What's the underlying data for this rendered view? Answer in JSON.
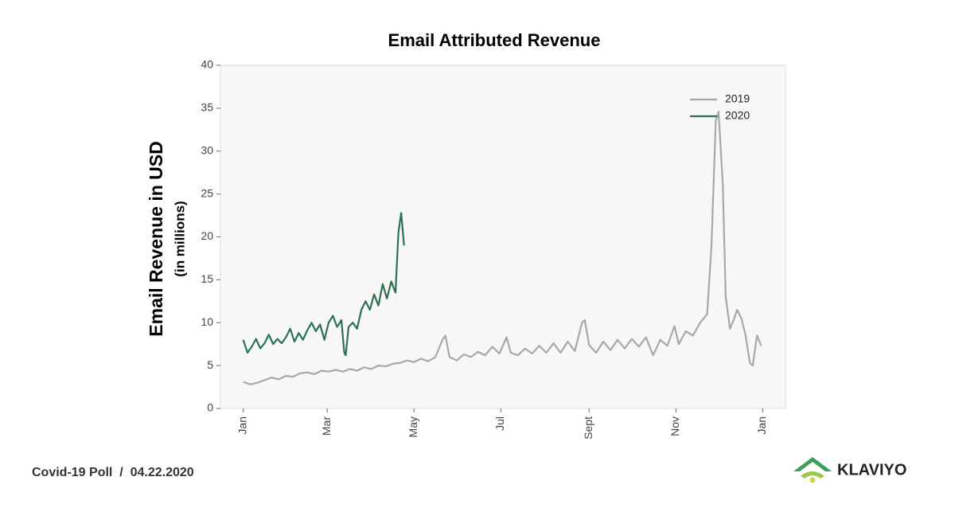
{
  "chart_data": {
    "type": "line",
    "title": "Email Attributed Revenue",
    "y_label": [
      "Email Revenue in USD",
      "(in millions)"
    ],
    "xlim": [
      -16,
      381
    ],
    "ylim": [
      0,
      40
    ],
    "xticks": [
      {
        "value": 0,
        "label": "Jan"
      },
      {
        "value": 59,
        "label": "Mar"
      },
      {
        "value": 120,
        "label": "May"
      },
      {
        "value": 181,
        "label": "Jul"
      },
      {
        "value": 243,
        "label": "Sept"
      },
      {
        "value": 304,
        "label": "Nov"
      },
      {
        "value": 365,
        "label": "Jan"
      }
    ],
    "yticks": [
      0,
      5,
      10,
      15,
      20,
      25,
      30,
      35,
      40
    ],
    "legend": "upper right",
    "grid": false,
    "series": [
      {
        "name": "2019",
        "color": "#a8a8a8",
        "x": [
          0,
          5,
          10,
          15,
          20,
          25,
          30,
          35,
          40,
          45,
          50,
          55,
          60,
          65,
          70,
          75,
          80,
          85,
          90,
          95,
          100,
          105,
          110,
          115,
          120,
          125,
          130,
          135,
          140,
          142,
          145,
          150,
          155,
          160,
          165,
          170,
          175,
          180,
          185,
          188,
          193,
          198,
          203,
          208,
          213,
          218,
          223,
          228,
          233,
          238,
          240,
          243,
          248,
          253,
          258,
          263,
          268,
          273,
          278,
          283,
          288,
          293,
          298,
          303,
          306,
          311,
          316,
          321,
          326,
          329,
          332,
          334,
          337,
          339,
          342,
          345,
          347,
          350,
          353,
          356,
          358,
          361,
          364
        ],
        "values": [
          3.1,
          2.8,
          3.0,
          3.3,
          3.6,
          3.4,
          3.8,
          3.7,
          4.1,
          4.2,
          4.0,
          4.4,
          4.3,
          4.5,
          4.3,
          4.6,
          4.4,
          4.8,
          4.6,
          5.0,
          4.9,
          5.2,
          5.3,
          5.6,
          5.4,
          5.8,
          5.5,
          6.0,
          8.0,
          8.5,
          6.0,
          5.6,
          6.3,
          6.0,
          6.6,
          6.2,
          7.2,
          6.4,
          8.3,
          6.5,
          6.2,
          7.0,
          6.4,
          7.3,
          6.5,
          7.6,
          6.5,
          7.8,
          6.7,
          10.0,
          10.3,
          7.4,
          6.5,
          7.8,
          6.8,
          8.0,
          7.0,
          8.1,
          7.2,
          8.3,
          6.2,
          8.0,
          7.3,
          9.6,
          7.5,
          9.0,
          8.5,
          10.0,
          11.0,
          19.0,
          33.5,
          34.6,
          26.0,
          13.0,
          9.3,
          10.5,
          11.5,
          10.5,
          8.5,
          5.3,
          5.0,
          8.5,
          7.3
        ]
      },
      {
        "name": "2020",
        "color": "#2e7052",
        "x": [
          0,
          3,
          6,
          9,
          12,
          15,
          18,
          21,
          24,
          27,
          30,
          33,
          36,
          39,
          42,
          45,
          48,
          51,
          54,
          57,
          60,
          63,
          66,
          69,
          71,
          72,
          74,
          77,
          80,
          83,
          86,
          89,
          92,
          95,
          98,
          101,
          104,
          107,
          109,
          111,
          113
        ],
        "values": [
          8.0,
          6.5,
          7.2,
          8.1,
          7.0,
          7.6,
          8.6,
          7.5,
          8.1,
          7.6,
          8.3,
          9.3,
          7.8,
          8.8,
          8.0,
          9.1,
          10.0,
          9.0,
          9.8,
          8.0,
          10.0,
          10.8,
          9.5,
          10.3,
          6.5,
          6.2,
          9.5,
          10.0,
          9.3,
          11.5,
          12.5,
          11.5,
          13.3,
          12.0,
          14.5,
          12.8,
          14.8,
          13.5,
          20.5,
          22.8,
          19.0
        ]
      }
    ]
  },
  "footer": {
    "caption": "Covid-19 Poll  /  04.22.2020",
    "brand": "KLAVIYO"
  }
}
